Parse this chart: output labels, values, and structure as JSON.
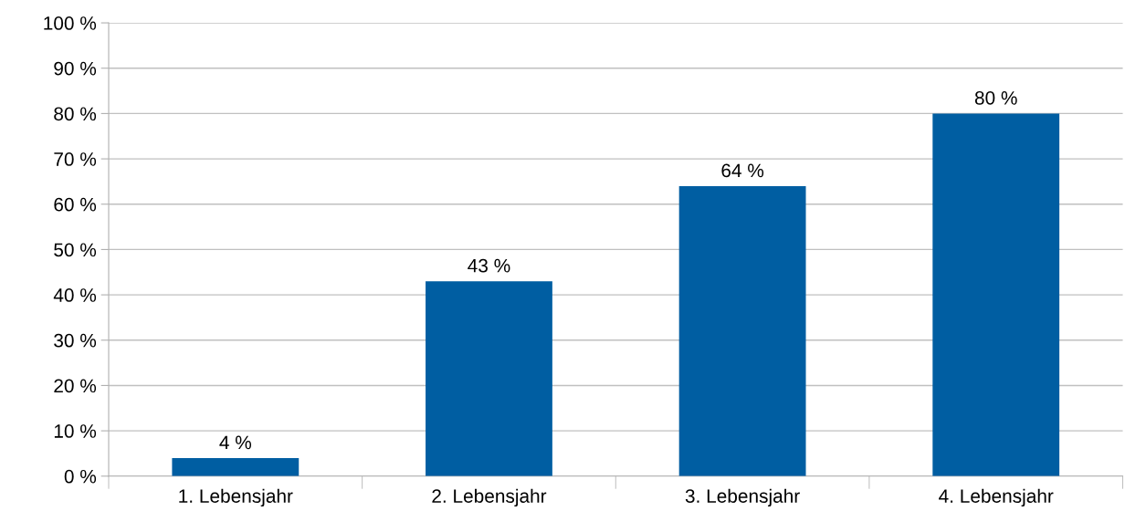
{
  "chart_data": {
    "type": "bar",
    "categories": [
      "1. Lebensjahr",
      "2. Lebensjahr",
      "3. Lebensjahr",
      "4. Lebensjahr"
    ],
    "values": [
      4,
      43,
      64,
      80
    ],
    "value_labels": [
      "4 %",
      "43 %",
      "64 %",
      "80 %"
    ],
    "color": "#005ea2",
    "ylim": [
      0,
      100
    ],
    "yticks": [
      {
        "value": 0,
        "label": "0 %"
      },
      {
        "value": 10,
        "label": "10 %"
      },
      {
        "value": 20,
        "label": "20 %"
      },
      {
        "value": 30,
        "label": "30 %"
      },
      {
        "value": 40,
        "label": "40 %"
      },
      {
        "value": 50,
        "label": "50 %"
      },
      {
        "value": 60,
        "label": "60 %"
      },
      {
        "value": 70,
        "label": "70 %"
      },
      {
        "value": 80,
        "label": "80 %"
      },
      {
        "value": 90,
        "label": "90 %"
      },
      {
        "value": 100,
        "label": "100 %"
      }
    ],
    "grid": "y",
    "legend": false
  }
}
